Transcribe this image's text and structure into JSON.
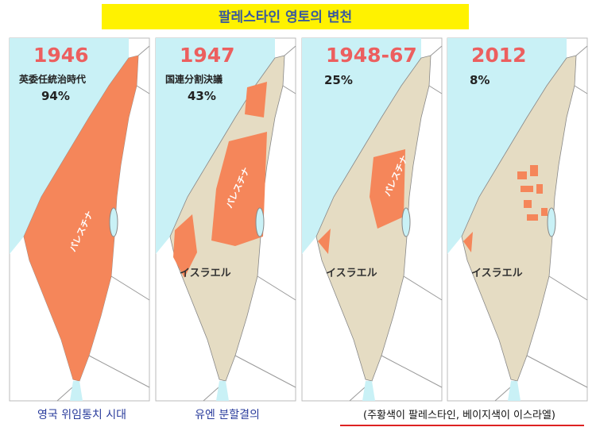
{
  "header": {
    "title": "팔레스타인 영토의 변천"
  },
  "panels": [
    {
      "year": "1946",
      "note": "英委任統治時代",
      "percent": "94%",
      "labels": [
        "パレスチナ"
      ]
    },
    {
      "year": "1947",
      "note": "国連分割決議",
      "percent": "43%",
      "labels": [
        "パレスチナ",
        "イスラエル"
      ]
    },
    {
      "year": "1948-67",
      "percent": "25%",
      "labels": [
        "パレスチナ",
        "イスラエル"
      ]
    },
    {
      "year": "2012",
      "percent": "8%",
      "labels": [
        "イスラエル"
      ]
    }
  ],
  "captions": [
    "영국 위임통치 시대",
    "유엔 분할결의",
    "(주황색이 팔레스타인, 베이지색이 이스라엘)"
  ]
}
